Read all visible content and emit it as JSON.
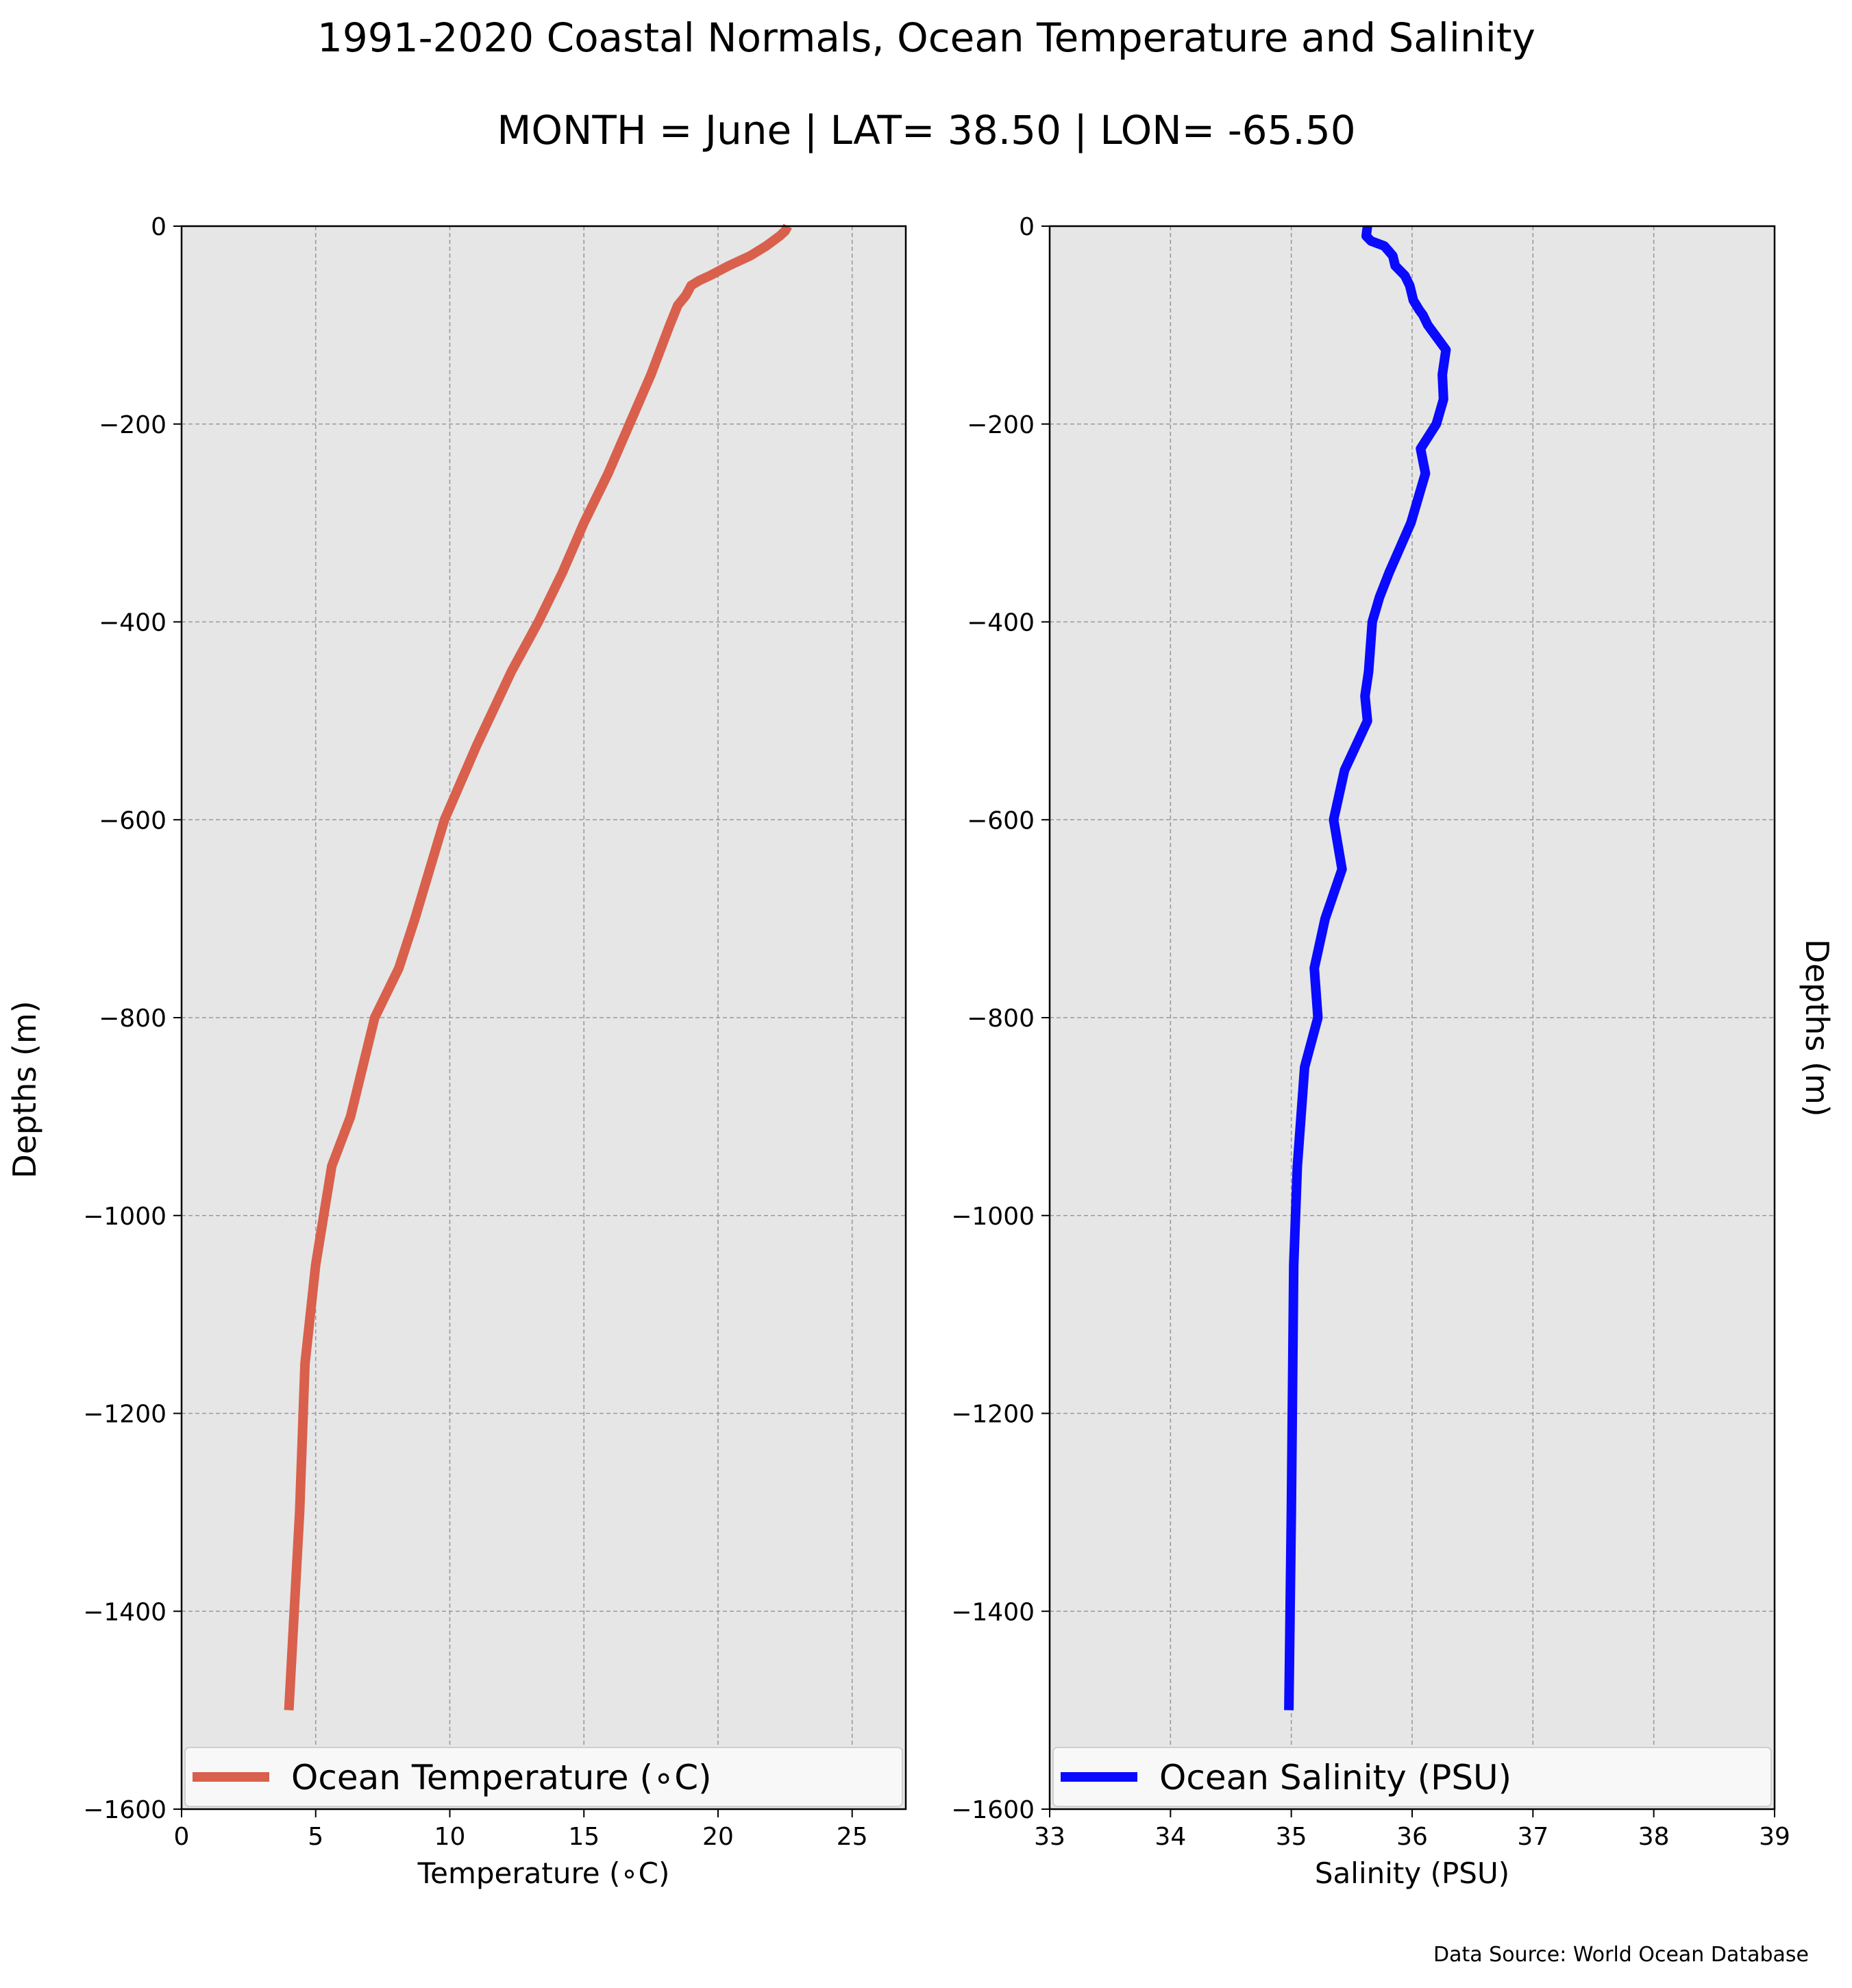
{
  "title": "1991-2020 Coastal Normals, Ocean Temperature and Salinity",
  "subtitle": "MONTH = June | LAT= 38.50 | LON= -65.50",
  "source": "Data Source: World Ocean Database",
  "colors": {
    "temperature": "#d9604c",
    "salinity": "#0a0aff",
    "axes_bg": "#e6e6e6",
    "grid": "#9a9a9a"
  },
  "chart_data": [
    {
      "type": "line",
      "xlabel": "Temperature (∘C)",
      "ylabel": "Depths (m)",
      "xlim": [
        0,
        27
      ],
      "ylim": [
        -1600,
        0
      ],
      "xticks": [
        0,
        5,
        10,
        15,
        20,
        25
      ],
      "yticks": [
        0,
        -200,
        -400,
        -600,
        -800,
        -1000,
        -1200,
        -1400,
        -1600
      ],
      "ytick_labels": [
        "0",
        "−200",
        "−400",
        "−600",
        "−800",
        "−1000",
        "−1200",
        "−1400",
        "−1600"
      ],
      "grid": true,
      "legend_position": "lower-center",
      "series": [
        {
          "name": "Ocean Temperature (∘C)",
          "color": "#d9604c",
          "x": [
            22.6,
            22.5,
            22.3,
            21.8,
            21.2,
            20.4,
            19.7,
            19.3,
            19.0,
            18.8,
            18.5,
            18.2,
            17.5,
            16.7,
            15.9,
            15.0,
            14.2,
            13.3,
            12.3,
            11.0,
            9.8,
            8.7,
            8.1,
            7.2,
            6.3,
            5.6,
            5.0,
            4.6,
            4.4,
            4.2,
            4.0
          ],
          "y": [
            0,
            -5,
            -10,
            -20,
            -30,
            -40,
            -50,
            -55,
            -60,
            -70,
            -80,
            -100,
            -150,
            -200,
            -250,
            -300,
            -350,
            -400,
            -450,
            -525,
            -600,
            -700,
            -750,
            -800,
            -900,
            -950,
            -1050,
            -1150,
            -1300,
            -1400,
            -1500
          ]
        }
      ]
    },
    {
      "type": "line",
      "xlabel": "Salinity (PSU)",
      "ylabel": "Depths (m)",
      "xlim": [
        33,
        39
      ],
      "ylim": [
        -1600,
        0
      ],
      "xticks": [
        33,
        34,
        35,
        36,
        37,
        38,
        39
      ],
      "yticks": [
        0,
        -200,
        -400,
        -600,
        -800,
        -1000,
        -1200,
        -1400,
        -1600
      ],
      "ytick_labels": [
        "0",
        "−200",
        "−400",
        "−600",
        "−800",
        "−1000",
        "−1200",
        "−1400",
        "−1600"
      ],
      "grid": true,
      "legend_position": "lower-center",
      "series": [
        {
          "name": "Ocean Salinity (PSU)",
          "color": "#0a0aff",
          "x": [
            35.63,
            35.62,
            35.66,
            35.77,
            35.84,
            35.86,
            35.94,
            35.98,
            36.01,
            36.06,
            36.09,
            36.13,
            36.19,
            36.28,
            36.25,
            36.26,
            36.2,
            36.07,
            36.11,
            35.99,
            35.81,
            35.73,
            35.67,
            35.64,
            35.61,
            35.63,
            35.44,
            35.35,
            35.42,
            35.28,
            35.19,
            35.22,
            35.11,
            35.05,
            35.02,
            35.0,
            34.98
          ],
          "y": [
            0,
            -10,
            -15,
            -20,
            -30,
            -40,
            -50,
            -60,
            -75,
            -85,
            -90,
            -100,
            -110,
            -125,
            -150,
            -175,
            -200,
            -225,
            -250,
            -300,
            -350,
            -375,
            -400,
            -450,
            -475,
            -500,
            -550,
            -600,
            -650,
            -700,
            -750,
            -800,
            -850,
            -950,
            -1050,
            -1300,
            -1500
          ]
        }
      ]
    }
  ]
}
